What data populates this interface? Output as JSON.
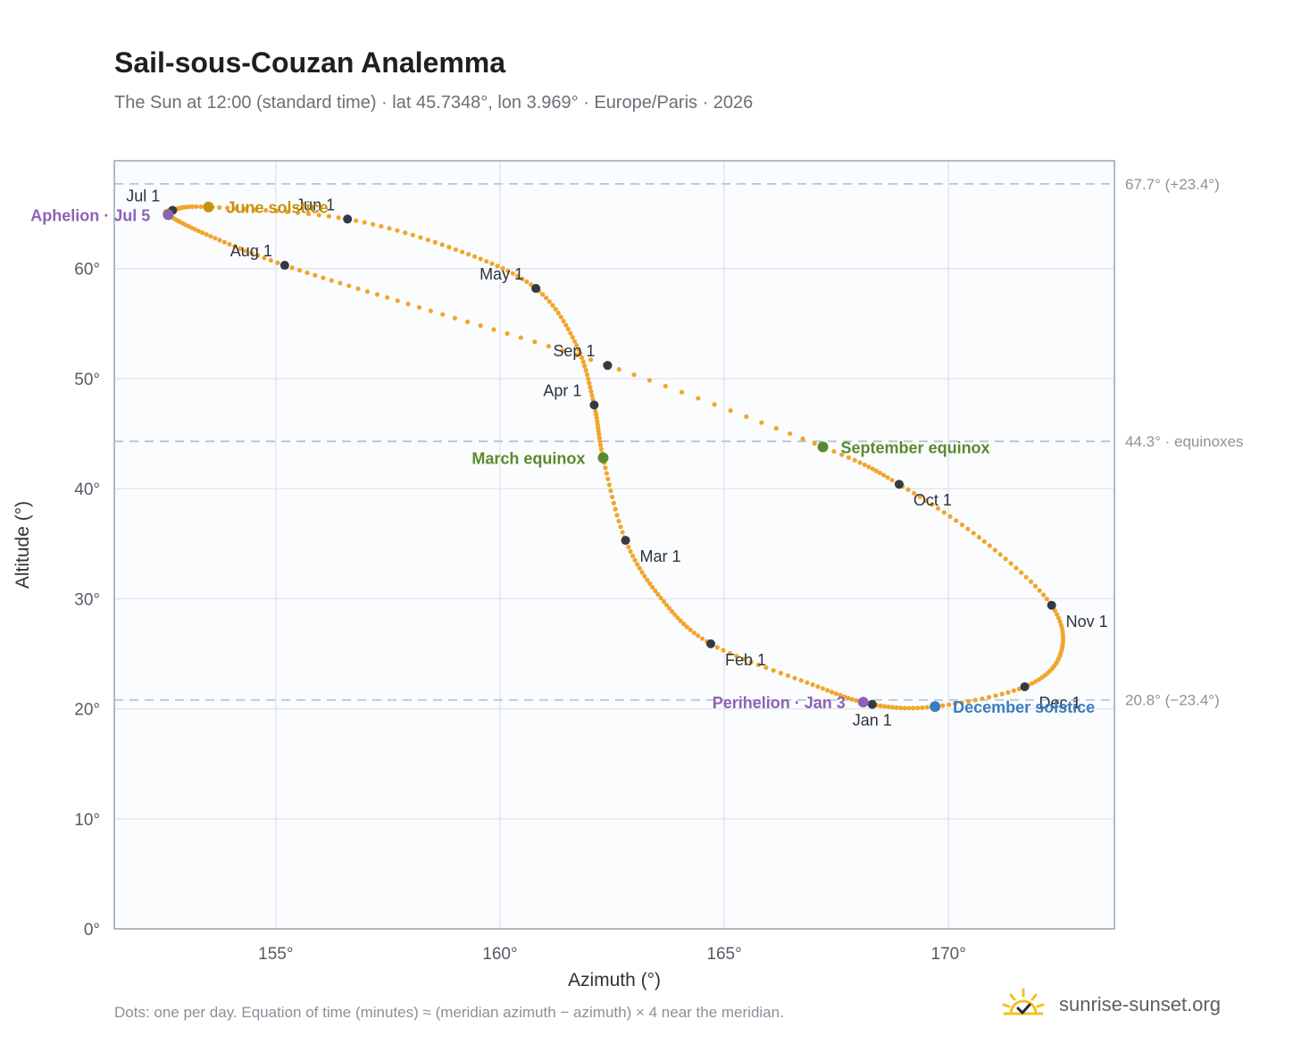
{
  "header": {
    "title": "Sail-sous-Couzan Analemma",
    "subtitle": "The Sun at 12:00 (standard time) · lat 45.7348°, lon 3.969° · Europe/Paris · 2026"
  },
  "footer": {
    "note": "Dots: one per day. Equation of time (minutes) ≈ (meridian azimuth − azimuth) × 4 near the meridian.",
    "brand": "sunrise-sunset.org"
  },
  "colors": {
    "path": "#f2a52a",
    "month_marker": "#333a44",
    "solstice_june": "#c8900e",
    "solstice_december": "#3a7cc0",
    "equinox": "#5a8a2e",
    "apsis": "#8c63b4",
    "grid": "#e3e7ec",
    "reference_line": "#b9c4cf",
    "plot_background": "#fafcfe",
    "frame": "#9aa5b1"
  },
  "chart_data": {
    "type": "scatter",
    "xlabel": "Azimuth (°)",
    "ylabel": "Altitude (°)",
    "xlim": [
      151.4,
      173.7
    ],
    "ylim": [
      0,
      69.8
    ],
    "xticks": [
      155,
      160,
      165,
      170
    ],
    "yticks": [
      0,
      10,
      20,
      30,
      40,
      50,
      60
    ],
    "xtick_labels": [
      "155°",
      "160°",
      "165°",
      "170°"
    ],
    "ytick_labels": [
      "0°",
      "10°",
      "20°",
      "30°",
      "40°",
      "50°",
      "60°"
    ],
    "grid": true,
    "reference_lines": [
      {
        "y": 67.7,
        "label": "67.7° (+23.4°)"
      },
      {
        "y": 44.3,
        "label": "44.3° · equinoxes"
      },
      {
        "y": 20.8,
        "label": "20.8° (−23.4°)"
      }
    ],
    "path_keypoints": [
      {
        "date": "Jan 1",
        "az": 168.3,
        "alt": 20.4
      },
      {
        "date": "Jan 15",
        "az": 166.9,
        "alt": 22.3
      },
      {
        "date": "Feb 1",
        "az": 164.7,
        "alt": 25.9
      },
      {
        "date": "Feb 15",
        "az": 163.6,
        "alt": 30.0
      },
      {
        "date": "Mar 1",
        "az": 162.8,
        "alt": 35.3
      },
      {
        "date": "Mar 20",
        "az": 162.3,
        "alt": 42.8
      },
      {
        "date": "Apr 1",
        "az": 162.1,
        "alt": 47.6
      },
      {
        "date": "Apr 15",
        "az": 161.7,
        "alt": 53.1
      },
      {
        "date": "May 1",
        "az": 160.8,
        "alt": 58.2
      },
      {
        "date": "May 15",
        "az": 159.1,
        "alt": 61.6
      },
      {
        "date": "Jun 1",
        "az": 156.6,
        "alt": 64.5
      },
      {
        "date": "Jun 21",
        "az": 153.5,
        "alt": 65.6
      },
      {
        "date": "Jul 1",
        "az": 152.7,
        "alt": 65.3
      },
      {
        "date": "Jul 5",
        "az": 152.6,
        "alt": 64.9
      },
      {
        "date": "Jul 15",
        "az": 153.4,
        "alt": 63.2
      },
      {
        "date": "Aug 1",
        "az": 155.2,
        "alt": 60.3
      },
      {
        "date": "Aug 15",
        "az": 158.1,
        "alt": 56.6
      },
      {
        "date": "Sep 1",
        "az": 162.4,
        "alt": 51.2
      },
      {
        "date": "Sep 23",
        "az": 167.2,
        "alt": 43.8
      },
      {
        "date": "Oct 1",
        "az": 168.9,
        "alt": 40.4
      },
      {
        "date": "Oct 15",
        "az": 170.8,
        "alt": 35.2
      },
      {
        "date": "Nov 1",
        "az": 172.3,
        "alt": 29.4
      },
      {
        "date": "Nov 15",
        "az": 172.5,
        "alt": 25.0
      },
      {
        "date": "Dec 1",
        "az": 171.7,
        "alt": 22.0
      },
      {
        "date": "Dec 21",
        "az": 169.7,
        "alt": 20.2
      },
      {
        "date": "Jan 1",
        "az": 168.3,
        "alt": 20.4
      }
    ],
    "month_markers": [
      {
        "label": "Jan 1",
        "az": 168.3,
        "alt": 20.4,
        "anchor": "below"
      },
      {
        "label": "Feb 1",
        "az": 164.7,
        "alt": 25.9,
        "anchor": "below-right"
      },
      {
        "label": "Mar 1",
        "az": 162.8,
        "alt": 35.3,
        "anchor": "below-right"
      },
      {
        "label": "Apr 1",
        "az": 162.1,
        "alt": 47.6,
        "anchor": "above-left"
      },
      {
        "label": "May 1",
        "az": 160.8,
        "alt": 58.2,
        "anchor": "above-left"
      },
      {
        "label": "Jun 1",
        "az": 156.6,
        "alt": 64.5,
        "anchor": "above-left"
      },
      {
        "label": "Jul 1",
        "az": 152.7,
        "alt": 65.3,
        "anchor": "above-left"
      },
      {
        "label": "Aug 1",
        "az": 155.2,
        "alt": 60.3,
        "anchor": "above-left"
      },
      {
        "label": "Sep 1",
        "az": 162.4,
        "alt": 51.2,
        "anchor": "above-left"
      },
      {
        "label": "Oct 1",
        "az": 168.9,
        "alt": 40.4,
        "anchor": "below-right"
      },
      {
        "label": "Nov 1",
        "az": 172.3,
        "alt": 29.4,
        "anchor": "below-right"
      },
      {
        "label": "Dec 1",
        "az": 171.7,
        "alt": 22.0,
        "anchor": "below-right"
      }
    ],
    "events": [
      {
        "label": "June solstice",
        "az": 153.5,
        "alt": 65.6,
        "color_key": "solstice_june",
        "side": "right"
      },
      {
        "label": "December solstice",
        "az": 169.7,
        "alt": 20.2,
        "color_key": "solstice_december",
        "side": "right"
      },
      {
        "label": "March equinox",
        "az": 162.3,
        "alt": 42.8,
        "color_key": "equinox",
        "side": "left"
      },
      {
        "label": "September equinox",
        "az": 167.2,
        "alt": 43.8,
        "color_key": "equinox",
        "side": "right"
      },
      {
        "label": "Aphelion · Jul 5",
        "az": 152.6,
        "alt": 64.9,
        "color_key": "apsis",
        "side": "left"
      },
      {
        "label": "Perihelion · Jan 3",
        "az": 168.1,
        "alt": 20.6,
        "color_key": "apsis",
        "side": "left"
      }
    ]
  }
}
